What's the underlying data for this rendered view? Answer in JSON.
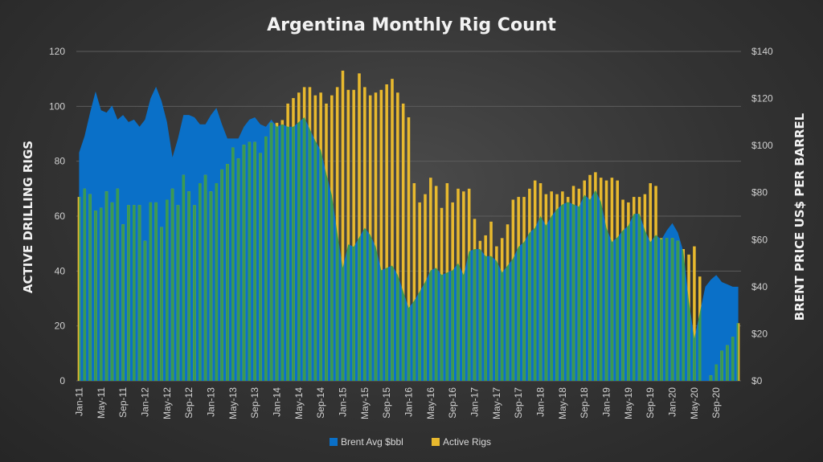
{
  "chart_data": {
    "type": "bar-area-combo",
    "title": "Argentina Monthly Rig Count",
    "y_left_label": "ACTIVE DRILLING RIGS",
    "y_right_label": "BRENT PRICE US$ PER BARREL",
    "y_left_range": [
      0,
      120
    ],
    "y_left_ticks": [
      "0",
      "20",
      "40",
      "60",
      "80",
      "100",
      "120"
    ],
    "y_right_range": [
      0,
      140
    ],
    "y_right_ticks": [
      "$0",
      "$20",
      "$40",
      "$60",
      "$80",
      "$100",
      "$120",
      "$140"
    ],
    "x_start": "2011-01",
    "x_tick_labels": [
      "Jan-11",
      "May-11",
      "Sep-11",
      "Jan-12",
      "May-12",
      "Sep-12",
      "Jan-13",
      "May-13",
      "Sep-13",
      "Jan-14",
      "May-14",
      "Sep-14",
      "Jan-15",
      "May-15",
      "Sep-15",
      "Jan-16",
      "May-16",
      "Sep-16",
      "Jan-17",
      "May-17",
      "Sep-17",
      "Jan-18",
      "May-18",
      "Sep-18",
      "Jan-19",
      "May-19",
      "Sep-19",
      "Jan-20",
      "May-20",
      "Sep-20"
    ],
    "legend": {
      "position": "bottom",
      "entries": [
        "Brent Avg $bbl",
        "Active Rigs"
      ]
    },
    "colors": {
      "brent": "#0a70c8",
      "rigs": "#e8b92e",
      "overlap": "#3a9a52",
      "background": "#333333"
    },
    "series": [
      {
        "name": "Active Rigs",
        "kind": "bar",
        "axis": "left",
        "values": [
          67,
          70,
          68,
          62,
          63,
          69,
          65,
          70,
          57,
          64,
          64,
          64,
          51,
          65,
          65,
          56,
          66,
          70,
          64,
          75,
          69,
          64,
          72,
          75,
          69,
          72,
          77,
          79,
          85,
          81,
          86,
          87,
          87,
          83,
          89,
          94,
          94,
          95,
          101,
          103,
          105,
          107,
          107,
          104,
          105,
          101,
          104,
          107,
          113,
          106,
          106,
          112,
          107,
          104,
          105,
          106,
          108,
          110,
          105,
          101,
          96,
          72,
          65,
          68,
          74,
          71,
          63,
          72,
          65,
          70,
          69,
          70,
          59,
          51,
          53,
          58,
          49,
          52,
          57,
          66,
          67,
          67,
          70,
          73,
          72,
          68,
          69,
          68,
          69,
          67,
          71,
          70,
          73,
          75,
          76,
          74,
          73,
          74,
          73,
          66,
          65,
          67,
          67,
          68,
          72,
          71,
          52,
          52,
          52,
          51,
          48,
          46,
          49,
          38,
          0,
          2,
          6,
          11,
          13,
          16,
          21
        ],
        "notes": "121 monthly values Jan-11 through Jan-21"
      },
      {
        "name": "Brent Avg $bbl",
        "kind": "area",
        "axis": "right",
        "values": [
          97,
          104,
          114,
          123,
          115,
          114,
          117,
          111,
          113,
          110,
          111,
          108,
          111,
          120,
          125,
          119,
          110,
          95,
          103,
          113,
          113,
          112,
          109,
          109,
          113,
          116,
          109,
          103,
          103,
          103,
          108,
          111,
          112,
          109,
          108,
          111,
          108,
          109,
          108,
          108,
          110,
          112,
          107,
          102,
          98,
          88,
          79,
          63,
          48,
          58,
          57,
          61,
          65,
          62,
          57,
          47,
          48,
          49,
          45,
          38,
          31,
          34,
          38,
          42,
          47,
          48,
          45,
          46,
          47,
          50,
          45,
          55,
          56,
          56,
          53,
          53,
          51,
          46,
          49,
          52,
          57,
          59,
          63,
          65,
          70,
          66,
          70,
          73,
          75,
          76,
          75,
          74,
          79,
          77,
          81,
          76,
          65,
          59,
          61,
          64,
          66,
          71,
          71,
          64,
          59,
          62,
          60,
          64,
          67,
          63,
          55,
          34,
          18,
          29,
          40,
          43,
          45,
          42,
          41,
          40,
          40
        ],
        "notes": "121 monthly values Jan-11 through Jan-21"
      }
    ]
  }
}
